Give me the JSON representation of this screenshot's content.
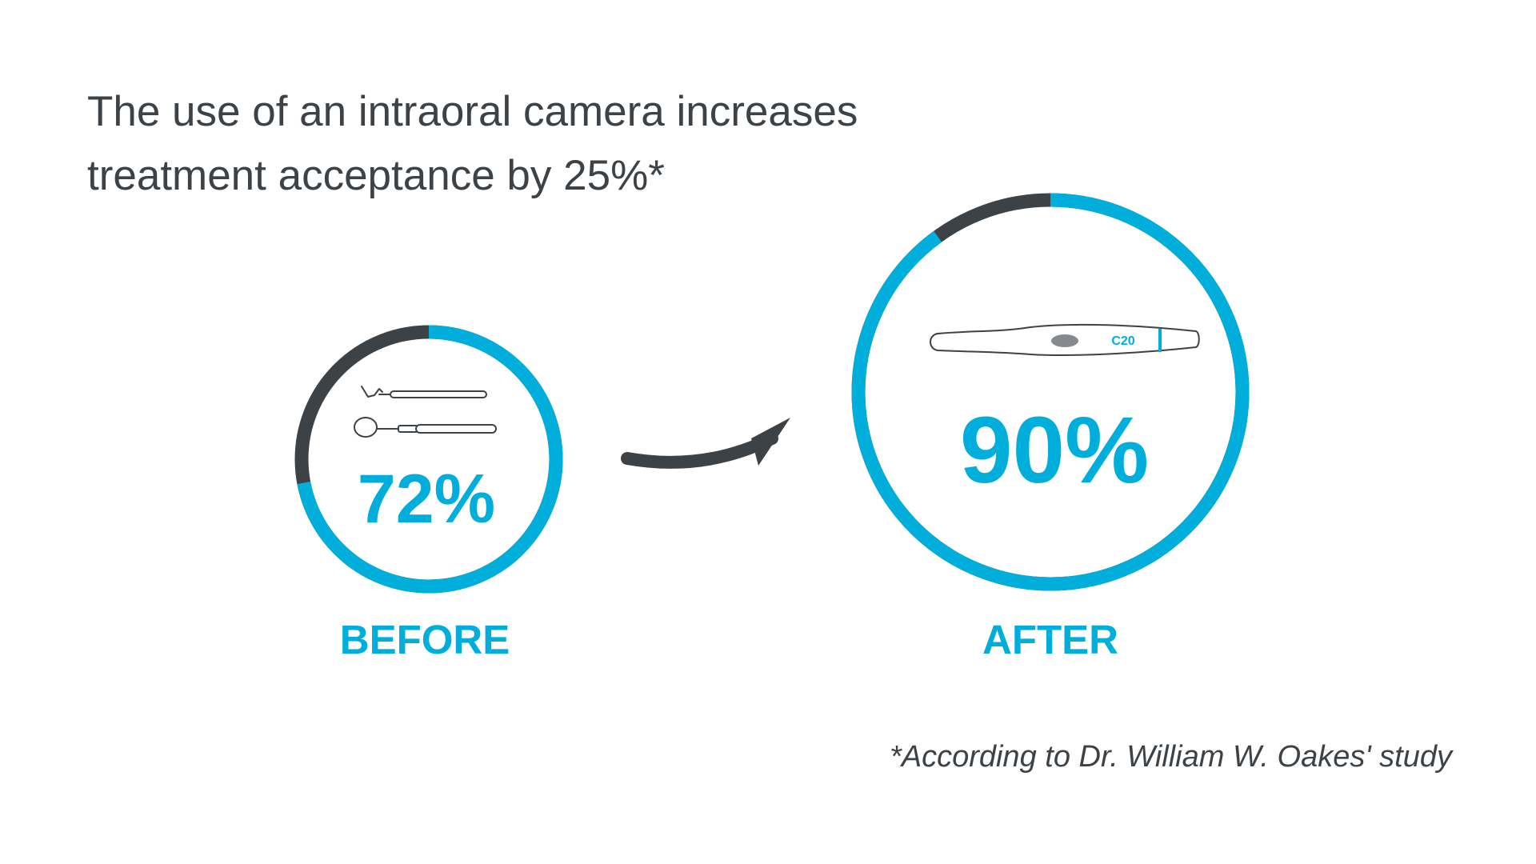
{
  "headline": {
    "line1": "The use of an intraoral camera increases",
    "line2": "treatment acceptance by 25%*"
  },
  "footnote": "*According to Dr. William W. Oakes' study",
  "colors": {
    "accent": "#00aedb",
    "remainder": "#3d4246",
    "text": "#3d4246",
    "background": "#ffffff"
  },
  "icons": {
    "before": "dental-mirror-and-explorer-icon",
    "after": "intraoral-camera-icon",
    "transition": "curved-arrow-icon"
  },
  "camera_brand": "C20",
  "chart_data": {
    "type": "pie",
    "max": 100,
    "items": [
      {
        "label": "BEFORE",
        "value": 72,
        "display": "72%"
      },
      {
        "label": "AFTER",
        "value": 90,
        "display": "90%"
      }
    ]
  }
}
